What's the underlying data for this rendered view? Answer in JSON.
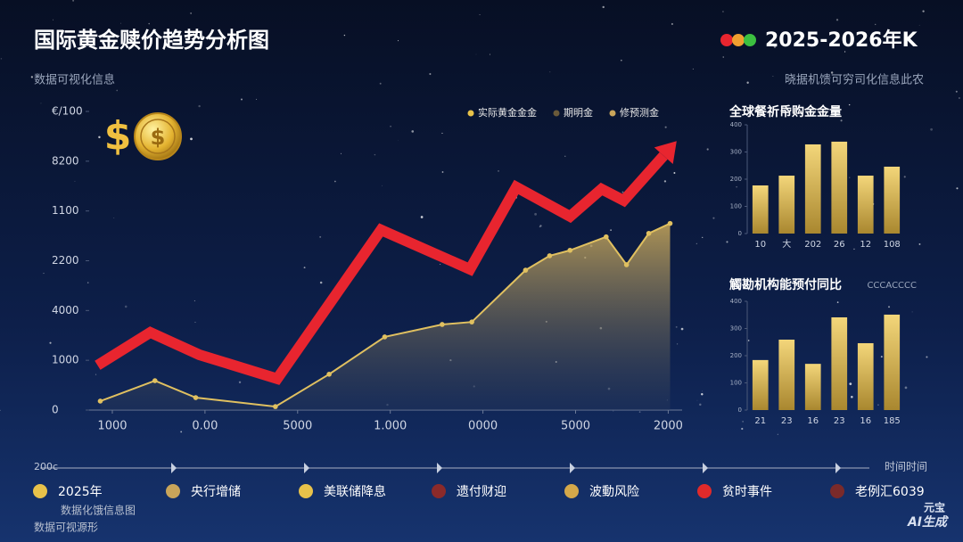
{
  "header": {
    "title": "国际黄金赎价趋势分析图",
    "badge": "2025-2026年K",
    "subtitle": "数据可视化信息",
    "subtitle_right": "晓据机馈可穷司化信息此农"
  },
  "chart_data": [
    {
      "type": "line",
      "xlim": [
        -0.25,
        6.15
      ],
      "ylim": [
        0,
        6000
      ],
      "xticks": [
        {
          "value": 0,
          "label": "1000"
        },
        {
          "value": 1,
          "label": "0.00"
        },
        {
          "value": 2,
          "label": "5000"
        },
        {
          "value": 3,
          "label": "1.000"
        },
        {
          "value": 4,
          "label": "0000"
        },
        {
          "value": 5,
          "label": "5000"
        },
        {
          "value": 6,
          "label": "2000"
        }
      ],
      "yticks": [
        0,
        1000,
        {
          "value": 2000,
          "label": "4000"
        },
        {
          "value": 3000,
          "label": "2200"
        },
        {
          "value": 4000,
          "label": "1100"
        },
        {
          "value": 5000,
          "label": "8200"
        },
        {
          "value": 6000,
          "label": "€/100"
        }
      ],
      "legend": [
        {
          "name": "实际黄金金金",
          "color": "#e8c24a"
        },
        {
          "name": "期明金",
          "color": "#6a5a3a"
        },
        {
          "name": "修预测金",
          "color": "#c9a55a"
        }
      ],
      "series": [
        {
          "color": "#e8252f",
          "x": [
            -0.16,
            0.41,
            0.94,
            1.78,
            2.9,
            3.86,
            4.36,
            4.94,
            5.28,
            5.52,
            5.95
          ],
          "values": [
            900,
            1560,
            1110,
            630,
            3620,
            2830,
            4480,
            3890,
            4440,
            4210,
            5110
          ]
        },
        {
          "color": "#e0c060",
          "area": true,
          "x": [
            -0.13,
            0.46,
            0.9,
            1.76,
            2.34,
            2.94,
            3.56,
            3.88,
            4.46,
            4.72,
            4.94,
            5.33,
            5.55,
            5.79,
            6.02
          ],
          "values": [
            180,
            590,
            250,
            70,
            720,
            1470,
            1720,
            1770,
            2810,
            3100,
            3210,
            3480,
            2920,
            3550,
            3750
          ]
        }
      ]
    },
    {
      "type": "bar",
      "title": "全球餐祈帋购金金量",
      "ylim": [
        0,
        400
      ],
      "yticks": [
        0,
        100,
        200,
        300,
        400
      ],
      "color": "#e6c15a",
      "categories": [
        "10",
        "大",
        "202",
        "26",
        "12",
        "108"
      ],
      "values": [
        177,
        213,
        328,
        338,
        213,
        246
      ]
    },
    {
      "type": "bar",
      "title": "觸勘机构能预付同比",
      "subtitle": "CCCACCCC",
      "ylim": [
        0,
        400
      ],
      "yticks": [
        0,
        100,
        200,
        300,
        400
      ],
      "color": "#e6c15a",
      "categories": [
        "21",
        "23",
        "16",
        "23",
        "16",
        "185"
      ],
      "values": [
        184,
        259,
        170,
        341,
        246,
        351
      ]
    }
  ],
  "timeline": {
    "start": "200c",
    "end": "时间时间",
    "items": [
      {
        "label": "2025年",
        "color": "#e8c24a"
      },
      {
        "label": "央行增储",
        "color": "#c9a55a"
      },
      {
        "label": "美联储降息",
        "color": "#e8c24a"
      },
      {
        "label": "遗付财迎",
        "color": "#8b2a2a"
      },
      {
        "label": "波動风险",
        "color": "#d4a84a"
      },
      {
        "label": "贫时事件",
        "color": "#e02a2a"
      },
      {
        "label": "老例汇6039",
        "color": "#7a2a2a"
      }
    ]
  },
  "footer": {
    "note": "数据化饿信息图",
    "source": "数据可视源形",
    "watermark_top": "元宝",
    "watermark_bottom": "AI生成"
  }
}
